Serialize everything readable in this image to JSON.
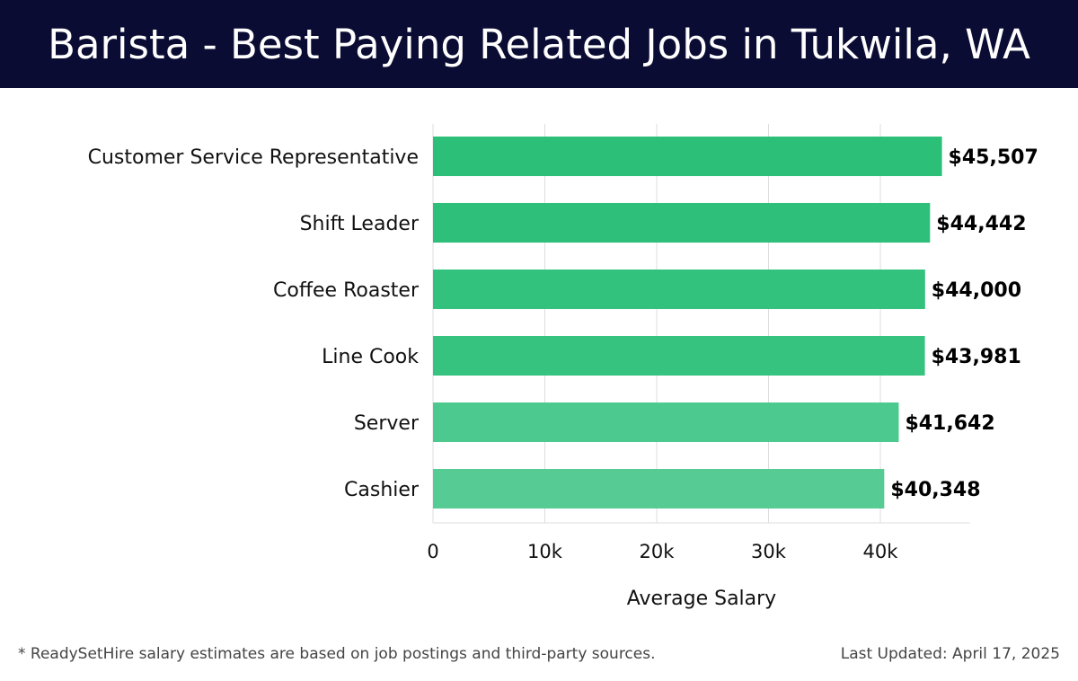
{
  "header": {
    "title": "Barista - Best Paying Related Jobs in Tukwila, WA"
  },
  "footer": {
    "note": "* ReadySetHire salary estimates are based on job postings and third-party sources.",
    "updated": "Last Updated: April 17, 2025"
  },
  "chart_data": {
    "type": "bar",
    "orientation": "horizontal",
    "title": "Barista - Best Paying Related Jobs in Tukwila, WA",
    "xlabel": "Average Salary",
    "ylabel": "",
    "xlim": [
      0,
      48000
    ],
    "grid": true,
    "categories": [
      "Customer Service Representative",
      "Shift Leader",
      "Coffee Roaster",
      "Line Cook",
      "Server",
      "Cashier"
    ],
    "values": [
      45507,
      44442,
      44000,
      43981,
      41642,
      40348
    ],
    "value_labels": [
      "$45,507",
      "$44,442",
      "$44,000",
      "$43,981",
      "$41,642",
      "$40,348"
    ],
    "ticks": [
      0,
      10000,
      20000,
      30000,
      40000
    ],
    "tick_labels": [
      "0",
      "10k",
      "20k",
      "30k",
      "40k"
    ],
    "bar_colors": [
      "#2bbf78",
      "#2ec07b",
      "#33c27e",
      "#36c380",
      "#4cc98e",
      "#56cc94"
    ],
    "grid_color": "#dddddd",
    "header_bg": "#0b0c33"
  }
}
